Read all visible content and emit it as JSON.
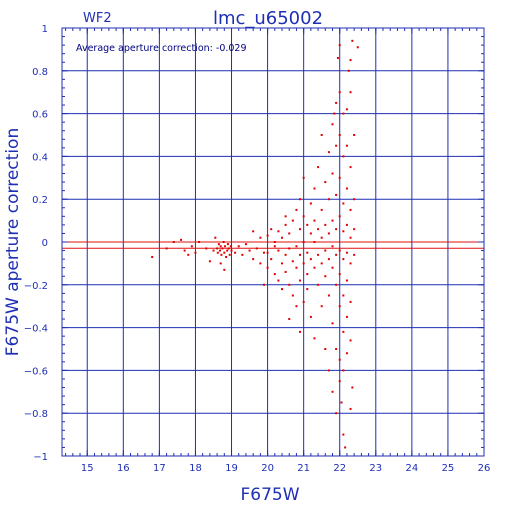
{
  "chart_data": {
    "type": "scatter",
    "title": "lmc_u65002",
    "chip_label": "WF2",
    "annotation": "Average aperture correction: -0.029",
    "xlabel": "F675W",
    "ylabel": "F675W aperture correction",
    "xlim": [
      14.3,
      26
    ],
    "ylim": [
      -1,
      1
    ],
    "xticks": [
      15,
      16,
      17,
      18,
      19,
      20,
      21,
      22,
      23,
      24,
      25,
      26
    ],
    "yticks": [
      -1,
      -0.8,
      -0.6,
      -0.4,
      -0.2,
      0,
      0.2,
      0.4,
      0.6,
      0.8,
      1
    ],
    "ytick_labels": [
      "−1",
      "−0.8",
      "−0.6",
      "−0.4",
      "−0.2",
      "0",
      "0.2",
      "0.4",
      "0.6",
      "0.8",
      "1"
    ],
    "grid": true,
    "reference_lines": [
      {
        "name": "zero",
        "y": 0,
        "color": "#e01010"
      },
      {
        "name": "average",
        "y": -0.029,
        "color": "#e01010"
      }
    ],
    "colors": {
      "axis": "#1f2fb4",
      "points": "#e00000",
      "lines": "#e01010"
    },
    "series": [
      {
        "points": [
          [
            16.8,
            -0.07
          ],
          [
            17.2,
            -0.03
          ],
          [
            17.4,
            0.0
          ],
          [
            17.6,
            0.01
          ],
          [
            17.7,
            -0.04
          ],
          [
            17.8,
            -0.06
          ],
          [
            17.9,
            -0.02
          ],
          [
            18.0,
            -0.05
          ],
          [
            18.1,
            0.0
          ],
          [
            18.3,
            -0.03
          ],
          [
            18.4,
            -0.09
          ],
          [
            18.5,
            -0.04
          ],
          [
            18.55,
            0.02
          ],
          [
            18.6,
            -0.03
          ],
          [
            18.62,
            -0.05
          ],
          [
            18.65,
            -0.01
          ],
          [
            18.68,
            -0.04
          ],
          [
            18.7,
            -0.02
          ],
          [
            18.72,
            -0.06
          ],
          [
            18.75,
            -0.03
          ],
          [
            18.78,
            0.0
          ],
          [
            18.8,
            -0.05
          ],
          [
            18.82,
            -0.02
          ],
          [
            18.85,
            -0.07
          ],
          [
            18.88,
            -0.04
          ],
          [
            18.9,
            -0.01
          ],
          [
            18.92,
            -0.03
          ],
          [
            18.95,
            -0.06
          ],
          [
            18.98,
            -0.02
          ],
          [
            19.0,
            -0.04
          ],
          [
            18.7,
            -0.1
          ],
          [
            18.8,
            -0.13
          ],
          [
            19.1,
            -0.05
          ],
          [
            19.2,
            -0.02
          ],
          [
            19.3,
            -0.06
          ],
          [
            19.4,
            -0.01
          ],
          [
            19.5,
            -0.04
          ],
          [
            19.6,
            -0.08
          ],
          [
            19.6,
            0.05
          ],
          [
            19.7,
            -0.03
          ],
          [
            19.8,
            -0.1
          ],
          [
            19.8,
            0.02
          ],
          [
            19.9,
            -0.05
          ],
          [
            19.9,
            -0.2
          ],
          [
            20.0,
            -0.05
          ],
          [
            20.0,
            -0.12
          ],
          [
            20.0,
            0.03
          ],
          [
            20.1,
            -0.08
          ],
          [
            20.1,
            0.06
          ],
          [
            20.2,
            -0.15
          ],
          [
            20.2,
            -0.02
          ],
          [
            20.2,
            0.0
          ],
          [
            20.3,
            -0.18
          ],
          [
            20.3,
            -0.04
          ],
          [
            20.3,
            0.05
          ],
          [
            20.4,
            -0.22
          ],
          [
            20.4,
            -0.1
          ],
          [
            20.4,
            0.02
          ],
          [
            20.5,
            -0.06
          ],
          [
            20.5,
            -0.14
          ],
          [
            20.5,
            0.08
          ],
          [
            20.5,
            0.12
          ],
          [
            20.6,
            -0.2
          ],
          [
            20.6,
            -0.03
          ],
          [
            20.6,
            0.04
          ],
          [
            20.6,
            -0.36
          ],
          [
            20.7,
            -0.09
          ],
          [
            20.7,
            -0.25
          ],
          [
            20.7,
            0.1
          ],
          [
            20.8,
            -0.12
          ],
          [
            20.8,
            -0.02
          ],
          [
            20.8,
            0.15
          ],
          [
            20.8,
            -0.3
          ],
          [
            20.9,
            -0.06
          ],
          [
            20.9,
            -0.18
          ],
          [
            20.9,
            0.06
          ],
          [
            20.9,
            0.2
          ],
          [
            20.9,
            -0.42
          ],
          [
            21.0,
            -0.1
          ],
          [
            21.0,
            0.0
          ],
          [
            21.0,
            -0.28
          ],
          [
            21.0,
            0.12
          ],
          [
            21.0,
            0.3
          ],
          [
            21.1,
            -0.05
          ],
          [
            21.1,
            -0.15
          ],
          [
            21.1,
            0.08
          ],
          [
            21.1,
            -0.22
          ],
          [
            21.2,
            -0.08
          ],
          [
            21.2,
            0.04
          ],
          [
            21.2,
            0.18
          ],
          [
            21.2,
            -0.35
          ],
          [
            21.3,
            -0.12
          ],
          [
            21.3,
            0.0
          ],
          [
            21.3,
            0.1
          ],
          [
            21.3,
            0.25
          ],
          [
            21.3,
            -0.45
          ],
          [
            21.4,
            -0.06
          ],
          [
            21.4,
            0.06
          ],
          [
            21.4,
            -0.2
          ],
          [
            21.4,
            0.35
          ],
          [
            21.5,
            -0.1
          ],
          [
            21.5,
            0.02
          ],
          [
            21.5,
            0.15
          ],
          [
            21.5,
            -0.3
          ],
          [
            21.5,
            0.5
          ],
          [
            21.6,
            -0.04
          ],
          [
            21.6,
            0.08
          ],
          [
            21.6,
            -0.16
          ],
          [
            21.6,
            0.28
          ],
          [
            21.6,
            -0.5
          ],
          [
            21.7,
            -0.08
          ],
          [
            21.7,
            0.04
          ],
          [
            21.7,
            0.2
          ],
          [
            21.7,
            -0.25
          ],
          [
            21.7,
            0.42
          ],
          [
            21.7,
            -0.6
          ],
          [
            21.8,
            -0.02
          ],
          [
            21.8,
            0.1
          ],
          [
            21.8,
            -0.12
          ],
          [
            21.8,
            0.32
          ],
          [
            21.8,
            -0.38
          ],
          [
            21.8,
            0.55
          ],
          [
            21.8,
            -0.7
          ],
          [
            21.85,
            0.6
          ],
          [
            21.9,
            -0.06
          ],
          [
            21.9,
            0.06
          ],
          [
            21.9,
            0.22
          ],
          [
            21.9,
            -0.2
          ],
          [
            21.9,
            0.45
          ],
          [
            21.9,
            -0.5
          ],
          [
            21.9,
            0.65
          ],
          [
            21.9,
            -0.8
          ],
          [
            21.95,
            0.86
          ],
          [
            22.0,
            -0.04
          ],
          [
            22.0,
            0.12
          ],
          [
            22.0,
            -0.15
          ],
          [
            22.0,
            0.3
          ],
          [
            22.0,
            -0.3
          ],
          [
            22.0,
            0.5
          ],
          [
            22.0,
            -0.55
          ],
          [
            22.0,
            0.7
          ],
          [
            22.0,
            -0.65
          ],
          [
            22.0,
            0.92
          ],
          [
            22.05,
            -0.75
          ],
          [
            22.1,
            -0.08
          ],
          [
            22.1,
            0.05
          ],
          [
            22.1,
            -0.25
          ],
          [
            22.1,
            0.18
          ],
          [
            22.1,
            -0.42
          ],
          [
            22.1,
            0.4
          ],
          [
            22.1,
            -0.6
          ],
          [
            22.1,
            0.6
          ],
          [
            22.1,
            -0.9
          ],
          [
            22.15,
            -0.96
          ],
          [
            22.2,
            -0.05
          ],
          [
            22.2,
            0.08
          ],
          [
            22.2,
            -0.18
          ],
          [
            22.2,
            0.25
          ],
          [
            22.2,
            -0.35
          ],
          [
            22.2,
            0.45
          ],
          [
            22.2,
            -0.52
          ],
          [
            22.2,
            0.62
          ],
          [
            22.25,
            0.8
          ],
          [
            22.3,
            -0.1
          ],
          [
            22.3,
            0.02
          ],
          [
            22.3,
            -0.28
          ],
          [
            22.3,
            0.15
          ],
          [
            22.3,
            -0.46
          ],
          [
            22.3,
            0.35
          ],
          [
            22.3,
            0.7
          ],
          [
            22.3,
            -0.78
          ],
          [
            22.35,
            0.94
          ],
          [
            22.35,
            -0.68
          ],
          [
            22.4,
            0.06
          ],
          [
            22.4,
            -0.06
          ],
          [
            22.4,
            0.5
          ],
          [
            22.4,
            0.2
          ],
          [
            22.5,
            0.91
          ],
          [
            22.3,
            0.85
          ]
        ]
      }
    ]
  }
}
